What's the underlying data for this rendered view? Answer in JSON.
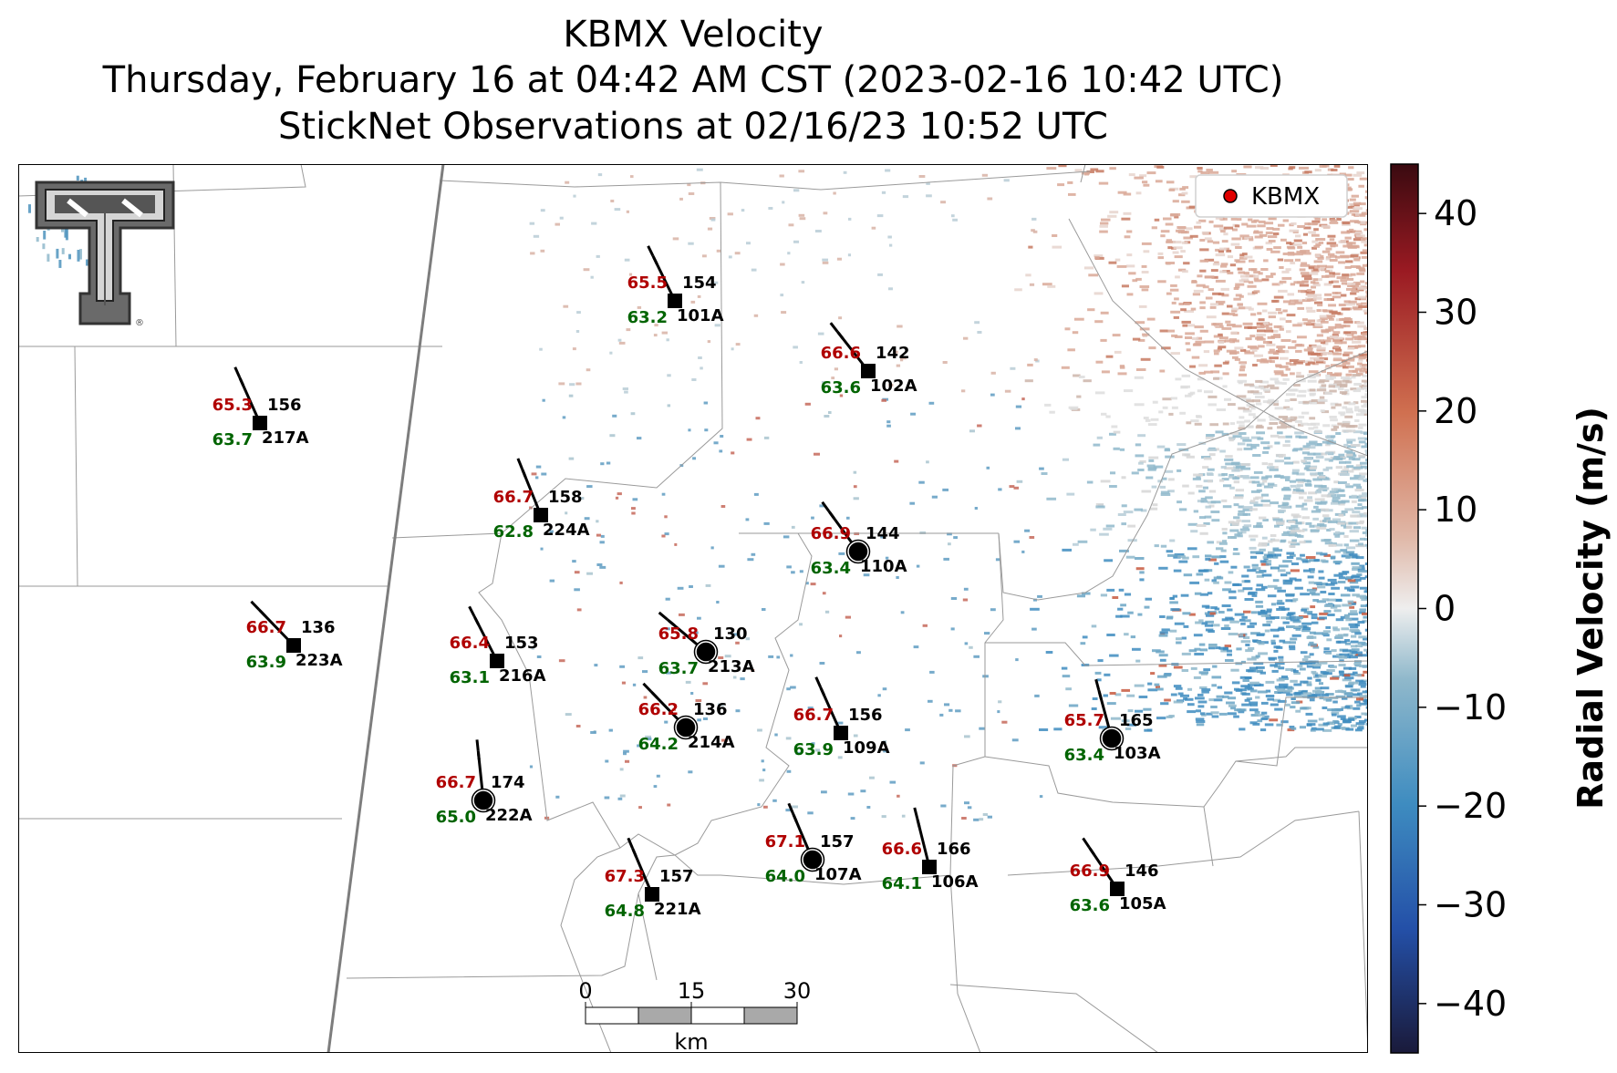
{
  "header": {
    "title": "KBMX Velocity",
    "subtitle": "Thursday, February 16 at 04:42 AM CST (2023-02-16 10:42 UTC)",
    "obs_time": "StickNet Observations at 02/16/23 10:52 UTC"
  },
  "legend": {
    "label": "KBMX",
    "marker_color": "#e00000"
  },
  "colorbar": {
    "label": "Radial Velocity (m/s)",
    "range": [
      -45,
      45
    ],
    "ticks": [
      "40",
      "30",
      "20",
      "10",
      "0",
      "−10",
      "−20",
      "−30",
      "−40"
    ],
    "tick_values": [
      40,
      30,
      20,
      10,
      0,
      -10,
      -20,
      -30,
      -40
    ],
    "colors": [
      "#1a1a3a",
      "#2450a8",
      "#3e8cc0",
      "#8fb8cb",
      "#eeeeee",
      "#e0b8a8",
      "#d07050",
      "#9a1a22",
      "#3a0a10"
    ]
  },
  "scale_bar": {
    "ticks": [
      "0",
      "15",
      "30"
    ],
    "unit": "km"
  },
  "logo": {
    "name": "texas-tech-logo"
  },
  "stations": [
    {
      "id": "101A",
      "temp": "65.5",
      "dew": "63.2",
      "dir": "154",
      "marker": "square"
    },
    {
      "id": "102A",
      "temp": "66.6",
      "dew": "63.6",
      "dir": "142",
      "marker": "square"
    },
    {
      "id": "217A",
      "temp": "65.3",
      "dew": "63.7",
      "dir": "156",
      "marker": "square"
    },
    {
      "id": "224A",
      "temp": "66.7",
      "dew": "62.8",
      "dir": "158",
      "marker": "square"
    },
    {
      "id": "110A",
      "temp": "66.9",
      "dew": "63.4",
      "dir": "144",
      "marker": "circle"
    },
    {
      "id": "223A",
      "temp": "66.7",
      "dew": "63.9",
      "dir": "136",
      "marker": "square"
    },
    {
      "id": "216A",
      "temp": "66.4",
      "dew": "63.1",
      "dir": "153",
      "marker": "square"
    },
    {
      "id": "213A",
      "temp": "65.8",
      "dew": "63.7",
      "dir": "130",
      "marker": "circle"
    },
    {
      "id": "214A",
      "temp": "66.2",
      "dew": "64.2",
      "dir": "136",
      "marker": "circle"
    },
    {
      "id": "109A",
      "temp": "66.7",
      "dew": "63.9",
      "dir": "156",
      "marker": "square"
    },
    {
      "id": "103A",
      "temp": "65.7",
      "dew": "63.4",
      "dir": "165",
      "marker": "circle"
    },
    {
      "id": "222A",
      "temp": "66.7",
      "dew": "65.0",
      "dir": "174",
      "marker": "circle"
    },
    {
      "id": "107A",
      "temp": "67.1",
      "dew": "64.0",
      "dir": "157",
      "marker": "circle"
    },
    {
      "id": "106A",
      "temp": "66.6",
      "dew": "64.1",
      "dir": "166",
      "marker": "square"
    },
    {
      "id": "221A",
      "temp": "67.3",
      "dew": "64.8",
      "dir": "157",
      "marker": "square"
    },
    {
      "id": "105A",
      "temp": "66.9",
      "dew": "63.6",
      "dir": "146",
      "marker": "square"
    }
  ]
}
